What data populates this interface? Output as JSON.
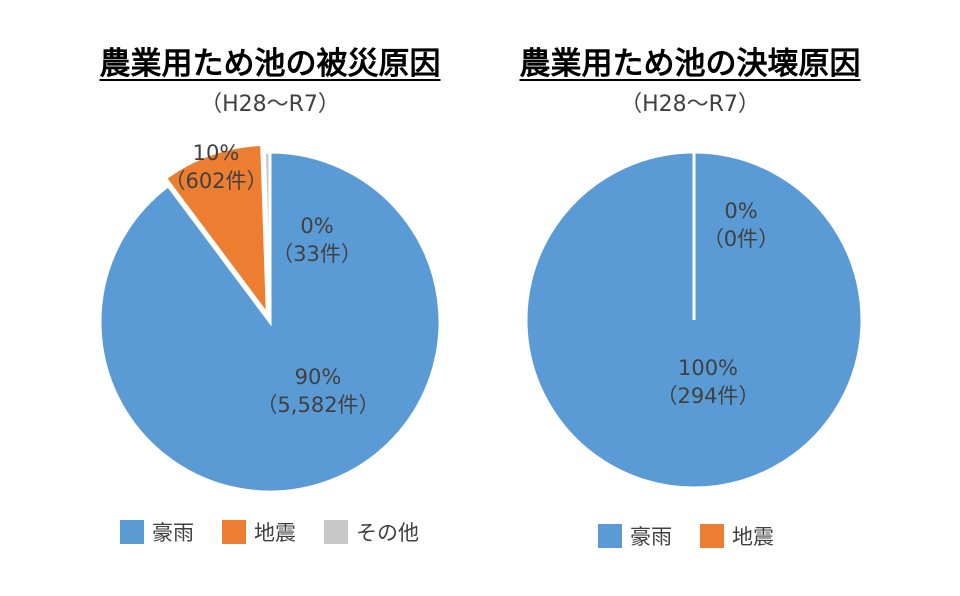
{
  "colors": {
    "heavy_rain": "#5b9bd5",
    "earthquake": "#ed7d31",
    "other": "#c8c8c8"
  },
  "chart_data": [
    {
      "type": "pie",
      "title": "農業用ため池の被災原因",
      "subtitle": "（H28～R7）",
      "slices": [
        {
          "name": "豪雨",
          "count": 5582,
          "percent_label": "90%",
          "count_label": "（5,582件）"
        },
        {
          "name": "地震",
          "count": 602,
          "percent_label": "10%",
          "count_label": "（602件）"
        },
        {
          "name": "その他",
          "count": 33,
          "percent_label": "0%",
          "count_label": "（33件）"
        }
      ],
      "legend": [
        "豪雨",
        "地震",
        "その他"
      ],
      "legend_position": "bottom"
    },
    {
      "type": "pie",
      "title": "農業用ため池の決壊原因",
      "subtitle": "（H28～R7）",
      "slices": [
        {
          "name": "豪雨",
          "count": 294,
          "percent_label": "100%",
          "count_label": "（294件）"
        },
        {
          "name": "地震",
          "count": 0,
          "percent_label": "0%",
          "count_label": "（0件）"
        }
      ],
      "legend": [
        "豪雨",
        "地震"
      ],
      "legend_position": "bottom"
    }
  ]
}
